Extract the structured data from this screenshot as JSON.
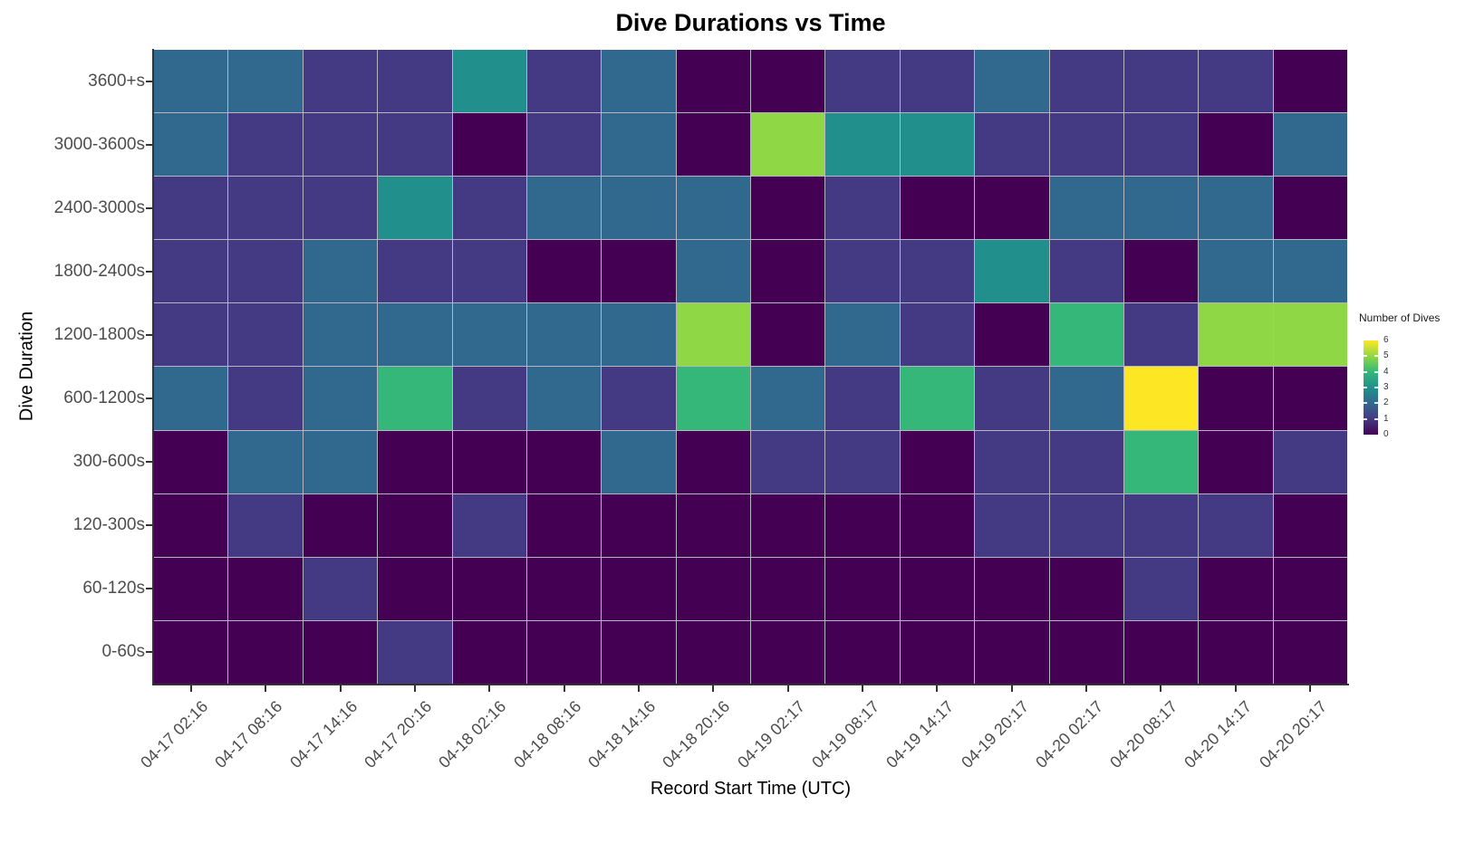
{
  "title": "Dive Durations vs Time",
  "x_axis": {
    "label": "Record Start Time (UTC)",
    "tick_labels": [
      "04-17 02:16",
      "04-17 08:16",
      "04-17 14:16",
      "04-17 20:16",
      "04-18 02:16",
      "04-18 08:16",
      "04-18 14:16",
      "04-18 20:16",
      "04-19 02:17",
      "04-19 08:17",
      "04-19 14:17",
      "04-19 20:17",
      "04-20 02:17",
      "04-20 08:17",
      "04-20 14:17",
      "04-20 20:17"
    ]
  },
  "y_axis": {
    "label": "Dive Duration",
    "tick_labels": [
      "3600+s",
      "3000-3600s",
      "2400-3000s",
      "1800-2400s",
      "1200-1800s",
      "600-1200s",
      "300-600s",
      "120-300s",
      "60-120s",
      "0-60s"
    ]
  },
  "legend": {
    "title": "Number of Dives",
    "tick_labels": [
      "6",
      "5",
      "4",
      "3",
      "2",
      "1",
      "0"
    ]
  },
  "chart_data": {
    "type": "heatmap",
    "title": "Dive Durations vs Time",
    "xlabel": "Record Start Time (UTC)",
    "ylabel": "Dive Duration",
    "x": [
      "04-17 02:16",
      "04-17 08:16",
      "04-17 14:16",
      "04-17 20:16",
      "04-18 02:16",
      "04-18 08:16",
      "04-18 14:16",
      "04-18 20:16",
      "04-19 02:17",
      "04-19 08:17",
      "04-19 14:17",
      "04-19 20:17",
      "04-20 02:17",
      "04-20 08:17",
      "04-20 14:17",
      "04-20 20:17"
    ],
    "y_top_to_bottom": [
      "3600+s",
      "3000-3600s",
      "2400-3000s",
      "1800-2400s",
      "1200-1800s",
      "600-1200s",
      "300-600s",
      "120-300s",
      "60-120s",
      "0-60s"
    ],
    "values": [
      [
        2,
        2,
        1,
        1,
        3,
        1,
        2,
        0,
        0,
        1,
        1,
        2,
        1,
        1,
        1,
        0
      ],
      [
        2,
        1,
        1,
        1,
        0,
        1,
        2,
        0,
        5,
        3,
        3,
        1,
        1,
        1,
        0,
        2
      ],
      [
        1,
        1,
        1,
        3,
        1,
        2,
        2,
        2,
        0,
        1,
        0,
        0,
        2,
        2,
        2,
        0
      ],
      [
        1,
        1,
        2,
        1,
        1,
        0,
        0,
        2,
        0,
        1,
        1,
        3,
        1,
        0,
        2,
        2
      ],
      [
        1,
        1,
        2,
        2,
        2,
        2,
        2,
        5,
        0,
        2,
        1,
        0,
        4,
        1,
        5,
        5
      ],
      [
        2,
        1,
        2,
        4,
        1,
        2,
        1,
        4,
        2,
        1,
        4,
        1,
        2,
        6,
        0,
        0
      ],
      [
        0,
        2,
        2,
        0,
        0,
        0,
        2,
        0,
        1,
        1,
        0,
        1,
        1,
        4,
        0,
        1
      ],
      [
        0,
        1,
        0,
        0,
        1,
        0,
        0,
        0,
        0,
        0,
        0,
        1,
        1,
        1,
        1,
        0
      ],
      [
        0,
        0,
        1,
        0,
        0,
        0,
        0,
        0,
        0,
        0,
        0,
        0,
        0,
        1,
        0,
        0
      ],
      [
        0,
        0,
        0,
        1,
        0,
        0,
        0,
        0,
        0,
        0,
        0,
        0,
        0,
        0,
        0,
        0
      ]
    ],
    "value_range": [
      0,
      6
    ],
    "colormap": "viridis",
    "legend_title": "Number of Dives",
    "legend_position": "right",
    "value_colors": {
      "0": "#440154",
      "1": "#443A83",
      "2": "#31688E",
      "3": "#21908C",
      "4": "#35B779",
      "5": "#8FD744",
      "6": "#FDE725"
    }
  }
}
